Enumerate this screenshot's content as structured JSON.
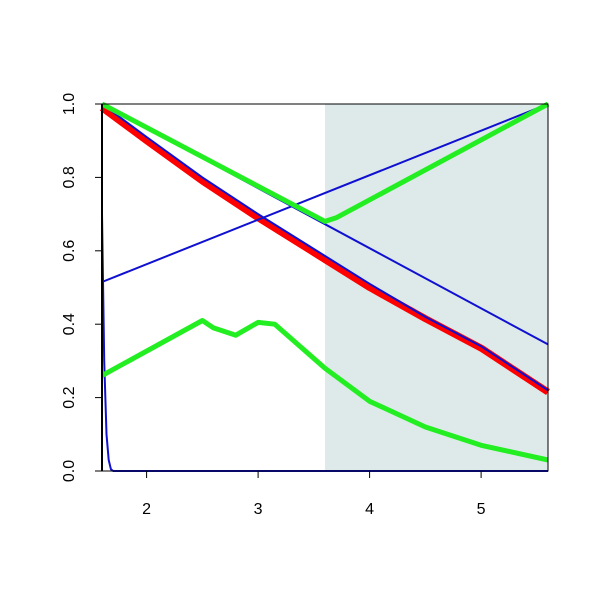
{
  "chart_data": {
    "type": "line",
    "xlim": [
      1.6,
      5.6
    ],
    "ylim": [
      0,
      1
    ],
    "xticks": [
      2,
      3,
      4,
      5
    ],
    "yticks": [
      {
        "value": 0,
        "label": "0.0"
      },
      0.2,
      0.4,
      0.6,
      0.8,
      {
        "value": 1,
        "label": "1.0"
      }
    ],
    "shaded_xrange": [
      3.6,
      5.6
    ],
    "shade_color": "#deeaea",
    "series": [
      {
        "color": "#ff0000",
        "x": [
          1.6,
          2,
          2.5,
          3,
          3.5,
          4,
          4.5,
          5,
          5.6
        ],
        "values": [
          0.99,
          0.9,
          0.79,
          0.69,
          0.595,
          0.5,
          0.415,
          0.335,
          0.215
        ]
      },
      {
        "color": "#1010d0",
        "x": [
          1.6,
          2,
          2.5,
          3,
          3.5,
          4,
          4.5,
          5,
          5.6
        ],
        "values": [
          1.0,
          0.91,
          0.8,
          0.7,
          0.605,
          0.51,
          0.42,
          0.34,
          0.22
        ]
      },
      {
        "color": "#1010d0",
        "x": [
          1.6,
          5.6
        ],
        "values": [
          1.0,
          0.345
        ]
      },
      {
        "color": "#1010d0",
        "x": [
          1.6,
          5.6
        ],
        "values": [
          0.515,
          1.0
        ]
      },
      {
        "color": "#1010d0",
        "x": [
          1.6,
          1.62,
          1.64,
          1.66,
          1.68,
          1.7,
          5.6
        ],
        "values": [
          0.7,
          0.3,
          0.1,
          0.03,
          0.005,
          0,
          0
        ]
      },
      {
        "color": "#22ee22",
        "x": [
          1.6,
          3.6,
          3.7,
          5.6
        ],
        "values": [
          1.0,
          0.68,
          0.69,
          1.0
        ]
      },
      {
        "color": "#22ee22",
        "x": [
          1.6,
          2.5,
          2.6,
          2.8,
          3.0,
          3.15,
          3.6,
          4,
          4.5,
          5,
          5.6
        ],
        "values": [
          0.26,
          0.41,
          0.39,
          0.37,
          0.405,
          0.4,
          0.28,
          0.19,
          0.12,
          0.07,
          0.03
        ]
      }
    ]
  }
}
